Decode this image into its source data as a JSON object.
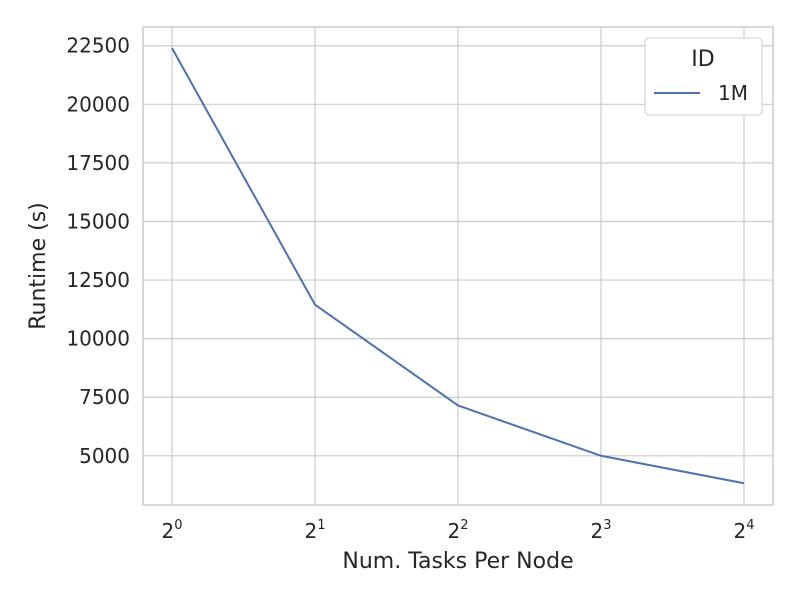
{
  "chart_data": {
    "type": "line",
    "title": "",
    "xlabel": "Num. Tasks Per Node",
    "ylabel": "Runtime (s)",
    "x_scale": "log2",
    "x": [
      1,
      2,
      4,
      8,
      16
    ],
    "x_tick_labels": [
      {
        "base": "2",
        "exp": "0"
      },
      {
        "base": "2",
        "exp": "1"
      },
      {
        "base": "2",
        "exp": "2"
      },
      {
        "base": "2",
        "exp": "3"
      },
      {
        "base": "2",
        "exp": "4"
      }
    ],
    "y_ticks": [
      5000,
      7500,
      10000,
      12500,
      15000,
      17500,
      20000,
      22500
    ],
    "ylim": [
      2900,
      23300
    ],
    "grid": true,
    "legend": {
      "title": "ID",
      "placement": "top-right"
    },
    "series": [
      {
        "name": "1M",
        "color": "#4c72b0",
        "values": [
          22400,
          11450,
          7150,
          5000,
          3830
        ]
      }
    ]
  }
}
